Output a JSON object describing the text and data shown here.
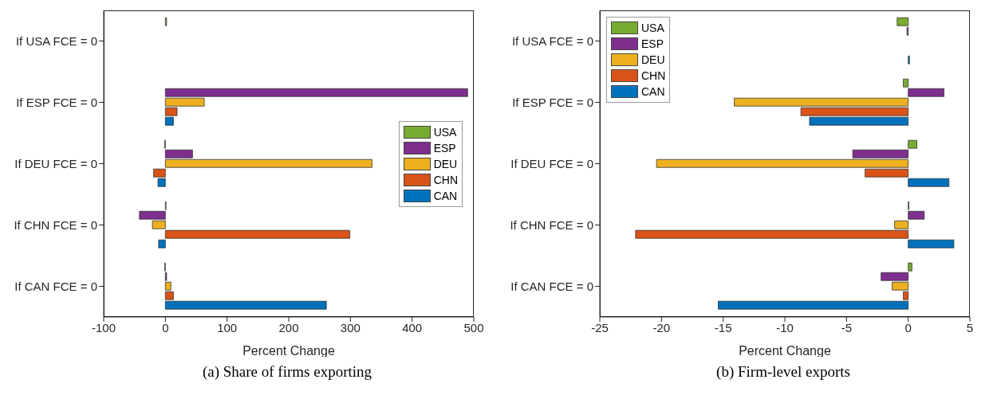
{
  "chart_data": [
    {
      "type": "bar",
      "orientation": "horizontal",
      "title": "(a) Share of firms exporting",
      "xlabel": "Percent Change",
      "categories": [
        "If USA FCE = 0",
        "If ESP FCE = 0",
        "If DEU FCE = 0",
        "If CHN FCE = 0",
        "If CAN FCE = 0"
      ],
      "series": [
        {
          "name": "USA",
          "color": "#77ac30",
          "values": [
            2,
            0,
            -1,
            1,
            -1
          ]
        },
        {
          "name": "ESP",
          "color": "#7e2f8e",
          "values": [
            0,
            490,
            44,
            -42,
            2
          ]
        },
        {
          "name": "DEU",
          "color": "#edb120",
          "values": [
            0,
            63,
            335,
            -21,
            9
          ]
        },
        {
          "name": "CHN",
          "color": "#d95319",
          "values": [
            0,
            19,
            -19,
            299,
            13
          ]
        },
        {
          "name": "CAN",
          "color": "#0072bd",
          "values": [
            0,
            13,
            -12,
            -11,
            261
          ]
        }
      ],
      "xlim": [
        -100,
        500
      ],
      "xticks": [
        -100,
        0,
        100,
        200,
        300,
        400,
        500
      ],
      "grid": false,
      "legend": "right"
    },
    {
      "type": "bar",
      "orientation": "horizontal",
      "title": "(b) Firm-level exports",
      "xlabel": "Percent Change",
      "categories": [
        "If USA FCE = 0",
        "If ESP FCE = 0",
        "If DEU FCE = 0",
        "If CHN FCE = 0",
        "If CAN FCE = 0"
      ],
      "series": [
        {
          "name": "USA",
          "color": "#77ac30",
          "values": [
            -0.9,
            -0.4,
            0.7,
            0.05,
            0.3
          ]
        },
        {
          "name": "ESP",
          "color": "#7e2f8e",
          "values": [
            -0.1,
            2.9,
            -4.5,
            1.3,
            -2.2
          ]
        },
        {
          "name": "DEU",
          "color": "#edb120",
          "values": [
            0,
            -14.1,
            -20.4,
            -1.1,
            -1.3
          ]
        },
        {
          "name": "CHN",
          "color": "#d95319",
          "values": [
            0,
            -8.7,
            -3.5,
            -22.1,
            -0.4
          ]
        },
        {
          "name": "CAN",
          "color": "#0072bd",
          "values": [
            0.1,
            -8,
            3.3,
            3.7,
            -15.4
          ]
        }
      ],
      "xlim": [
        -25,
        5
      ],
      "xticks": [
        -25,
        -20,
        -15,
        -10,
        -5,
        0,
        5
      ],
      "grid": false,
      "legend": "top left"
    }
  ]
}
